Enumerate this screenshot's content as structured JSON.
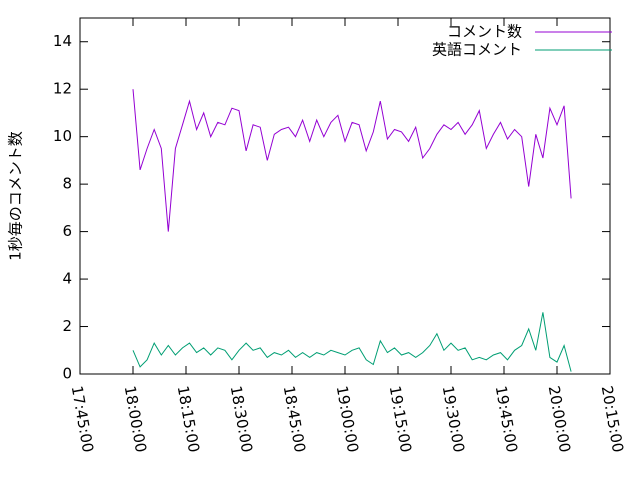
{
  "chart_data": {
    "type": "line",
    "ylabel": "1秒毎のコメント数",
    "x": [
      "18:00:00",
      "18:02:00",
      "18:04:00",
      "18:06:00",
      "18:08:00",
      "18:10:00",
      "18:12:00",
      "18:14:00",
      "18:16:00",
      "18:18:00",
      "18:20:00",
      "18:22:00",
      "18:24:00",
      "18:26:00",
      "18:28:00",
      "18:30:00",
      "18:32:00",
      "18:34:00",
      "18:36:00",
      "18:38:00",
      "18:40:00",
      "18:42:00",
      "18:44:00",
      "18:46:00",
      "18:48:00",
      "18:50:00",
      "18:52:00",
      "18:54:00",
      "18:56:00",
      "18:58:00",
      "19:00:00",
      "19:02:00",
      "19:04:00",
      "19:06:00",
      "19:08:00",
      "19:10:00",
      "19:12:00",
      "19:14:00",
      "19:16:00",
      "19:18:00",
      "19:20:00",
      "19:22:00",
      "19:24:00",
      "19:26:00",
      "19:28:00",
      "19:30:00",
      "19:32:00",
      "19:34:00",
      "19:36:00",
      "19:38:00",
      "19:40:00",
      "19:42:00",
      "19:44:00",
      "19:46:00",
      "19:48:00",
      "19:50:00",
      "19:52:00",
      "19:54:00",
      "19:56:00",
      "19:58:00",
      "20:00:00",
      "20:02:00",
      "20:04:00"
    ],
    "series": [
      {
        "name": "コメント数",
        "color": "#9400d3",
        "values": [
          12.0,
          8.6,
          9.5,
          10.3,
          9.5,
          6.0,
          9.5,
          10.5,
          11.5,
          10.3,
          11.0,
          10.0,
          10.6,
          10.5,
          11.2,
          11.1,
          9.4,
          10.5,
          10.4,
          9.0,
          10.1,
          10.3,
          10.4,
          10.0,
          10.7,
          9.8,
          10.7,
          10.0,
          10.6,
          10.9,
          9.8,
          10.6,
          10.5,
          9.4,
          10.2,
          11.5,
          9.9,
          10.3,
          10.2,
          9.8,
          10.4,
          9.1,
          9.5,
          10.1,
          10.5,
          10.3,
          10.6,
          10.1,
          10.5,
          11.1,
          9.5,
          10.1,
          10.6,
          9.9,
          10.3,
          10.0,
          7.9,
          10.1,
          9.1,
          11.2,
          10.5,
          11.3,
          7.4
        ]
      },
      {
        "name": "英語コメント",
        "color": "#009e73",
        "values": [
          1.0,
          0.3,
          0.6,
          1.3,
          0.8,
          1.2,
          0.8,
          1.1,
          1.3,
          0.9,
          1.1,
          0.8,
          1.1,
          1.0,
          0.6,
          1.0,
          1.3,
          1.0,
          1.1,
          0.7,
          0.9,
          0.8,
          1.0,
          0.7,
          0.9,
          0.7,
          0.9,
          0.8,
          1.0,
          0.9,
          0.8,
          1.0,
          1.1,
          0.6,
          0.4,
          1.4,
          0.9,
          1.1,
          0.8,
          0.9,
          0.7,
          0.9,
          1.2,
          1.7,
          1.0,
          1.3,
          1.0,
          1.1,
          0.6,
          0.7,
          0.6,
          0.8,
          0.9,
          0.6,
          1.0,
          1.2,
          1.9,
          1.0,
          2.6,
          0.7,
          0.5,
          1.2,
          0.1
        ]
      }
    ],
    "xlim": [
      "17:45:00",
      "20:15:00"
    ],
    "xticks": [
      "17:45:00",
      "18:00:00",
      "18:15:00",
      "18:30:00",
      "18:45:00",
      "19:00:00",
      "19:15:00",
      "19:30:00",
      "19:45:00",
      "20:00:00",
      "20:15:00"
    ],
    "ylim": [
      0,
      15
    ],
    "yticks": [
      0,
      2,
      4,
      6,
      8,
      10,
      12,
      14
    ],
    "legend": "top-right"
  }
}
